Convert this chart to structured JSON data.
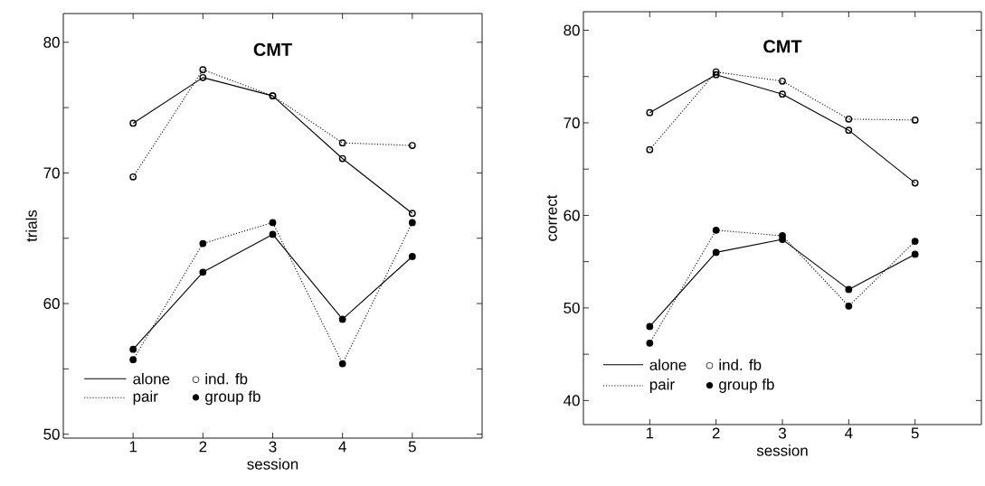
{
  "chart_data": [
    {
      "type": "line",
      "title": "CMT",
      "xlabel": "session",
      "ylabel": "trials",
      "x": [
        1,
        2,
        3,
        4,
        5
      ],
      "xlim": [
        0,
        6
      ],
      "xticks": [
        1,
        2,
        3,
        4,
        5
      ],
      "ylim": [
        49.7,
        82.2
      ],
      "yticks": [
        50,
        {
          "value": 55,
          "label": null
        },
        60,
        {
          "value": 65,
          "label": null
        },
        70,
        {
          "value": 75,
          "label": null
        },
        80
      ],
      "grid": false,
      "marker": "circle",
      "annotations": [
        "alone",
        "pair",
        "○ ind. fb",
        "● group fb"
      ],
      "series": [
        {
          "color": "#000000",
          "line_style": "solid",
          "values": [
            73.8,
            77.3,
            75.9,
            71.1,
            66.9
          ]
        },
        {
          "color": "#000000",
          "line_style": "dotted",
          "values": [
            69.7,
            77.9,
            75.9,
            72.3,
            72.1
          ]
        },
        {
          "color": "#000000",
          "line_style": "solid",
          "values": [
            56.5,
            62.4,
            65.3,
            58.8,
            63.6
          ]
        },
        {
          "color": "#000000",
          "line_style": "dotted",
          "values": [
            55.7,
            64.6,
            66.2,
            55.4,
            66.2
          ]
        }
      ]
    },
    {
      "type": "line",
      "title": "CMT",
      "xlabel": "session",
      "ylabel": "correct",
      "x": [
        1,
        2,
        3,
        4,
        5
      ],
      "xlim": [
        0,
        6
      ],
      "xticks": [
        1,
        2,
        3,
        4,
        5
      ],
      "ylim": [
        37.4,
        82
      ],
      "yticks": [
        40,
        {
          "value": 45,
          "label": null
        },
        50,
        {
          "value": 55,
          "label": null
        },
        60,
        {
          "value": 65,
          "label": null
        },
        70,
        {
          "value": 75,
          "label": null
        },
        80
      ],
      "grid": false,
      "marker": "circle",
      "annotations": [
        "alone",
        "pair",
        "○ ind. fb",
        "● group fb"
      ],
      "series": [
        {
          "color": "#000000",
          "line_style": "solid",
          "values": [
            71.1,
            75.2,
            73.1,
            69.2,
            63.5
          ]
        },
        {
          "color": "#000000",
          "line_style": "dotted",
          "values": [
            67.1,
            75.5,
            74.5,
            70.4,
            70.3
          ]
        },
        {
          "color": "#000000",
          "line_style": "solid",
          "values": [
            48.0,
            56.0,
            57.4,
            52.0,
            55.8
          ]
        },
        {
          "color": "#000000",
          "line_style": "dotted",
          "values": [
            46.2,
            58.4,
            57.8,
            50.2,
            57.2
          ]
        }
      ]
    }
  ]
}
